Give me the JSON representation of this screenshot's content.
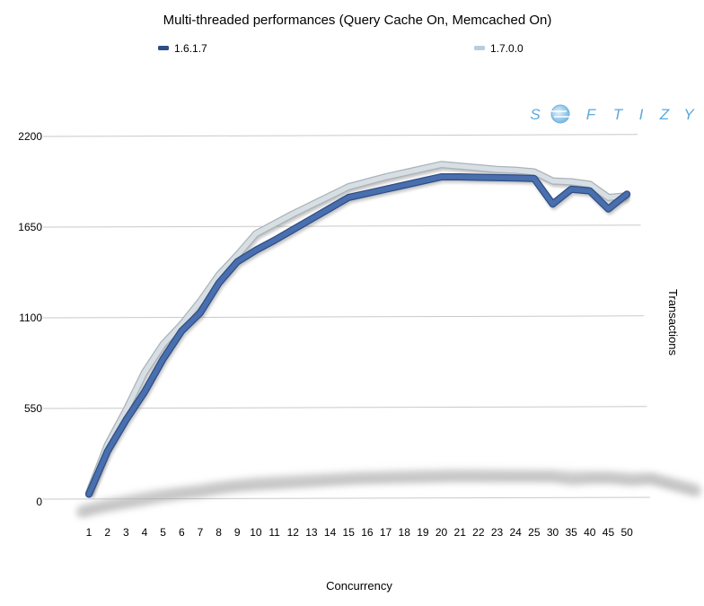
{
  "chart_data": {
    "type": "line",
    "title": "Multi-threaded performances (Query Cache On, Memcached On)",
    "xlabel": "Concurrency",
    "ylabel": "Transactions",
    "ylim": [
      0,
      2200
    ],
    "yticks": [
      "0",
      "550",
      "1100",
      "1650",
      "2200"
    ],
    "categories": [
      "1",
      "2",
      "3",
      "4",
      "5",
      "6",
      "7",
      "8",
      "9",
      "10",
      "11",
      "12",
      "13",
      "14",
      "15",
      "16",
      "17",
      "18",
      "19",
      "20",
      "21",
      "22",
      "23",
      "24",
      "25",
      "30",
      "35",
      "40",
      "45",
      "50"
    ],
    "series": [
      {
        "name": "1.6.1.7",
        "color": "#4a6fae",
        "values": [
          30,
          290,
          480,
          650,
          850,
          1020,
          1130,
          1310,
          1440,
          1510,
          1570,
          1635,
          1700,
          1765,
          1830,
          1855,
          1880,
          1905,
          1930,
          1955,
          1955,
          1952,
          1950,
          1948,
          1945,
          1790,
          1880,
          1870,
          1760,
          1850
        ]
      },
      {
        "name": "1.7.0.0",
        "color": "#d7dfe4",
        "values": [
          40,
          330,
          540,
          770,
          940,
          1060,
          1200,
          1360,
          1480,
          1610,
          1670,
          1730,
          1785,
          1840,
          1895,
          1925,
          1955,
          1980,
          2005,
          2030,
          2020,
          2010,
          2000,
          1995,
          1985,
          1930,
          1925,
          1910,
          1830,
          1840
        ]
      }
    ],
    "legend": "top",
    "grid": true
  },
  "watermark": "SOFTIZY"
}
